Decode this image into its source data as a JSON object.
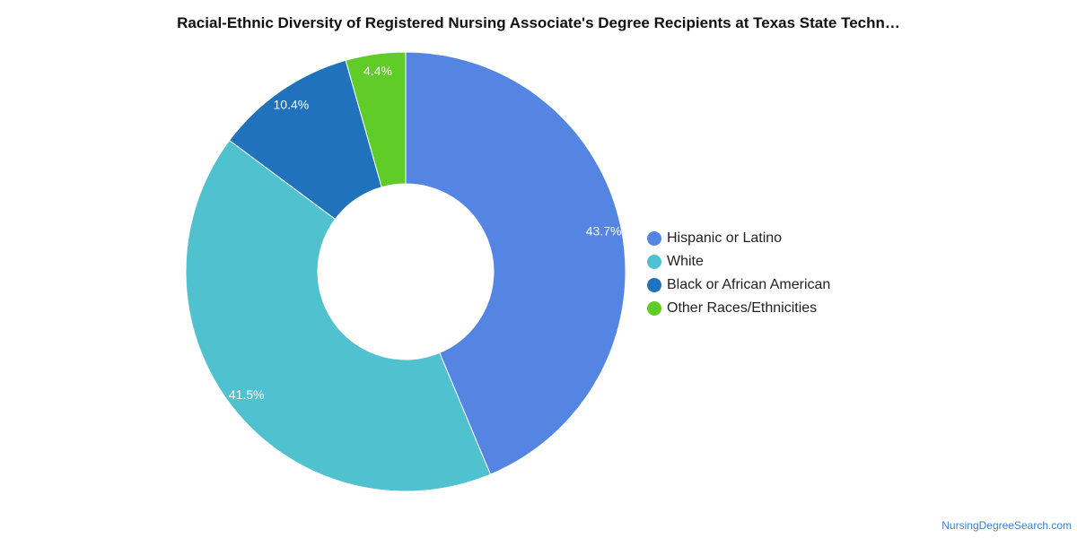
{
  "title": "Racial-Ethnic Diversity of Registered Nursing Associate's Degree Recipients at Texas State Techn…",
  "source_link": "NursingDegreeSearch.com",
  "chart_data": {
    "type": "pie",
    "donut": true,
    "title": "Racial-Ethnic Diversity of Registered Nursing Associate's Degree Recipients at Texas State Techn…",
    "legend_position": "right",
    "categories": [
      "Hispanic or Latino",
      "White",
      "Black or African American",
      "Other Races/Ethnicities"
    ],
    "values": [
      43.7,
      41.5,
      10.4,
      4.4
    ],
    "labels": [
      "43.7%",
      "41.5%",
      "10.4%",
      "4.4%"
    ],
    "colors": [
      "#5585e2",
      "#50c1cf",
      "#1f72bb",
      "#60cc27"
    ]
  }
}
